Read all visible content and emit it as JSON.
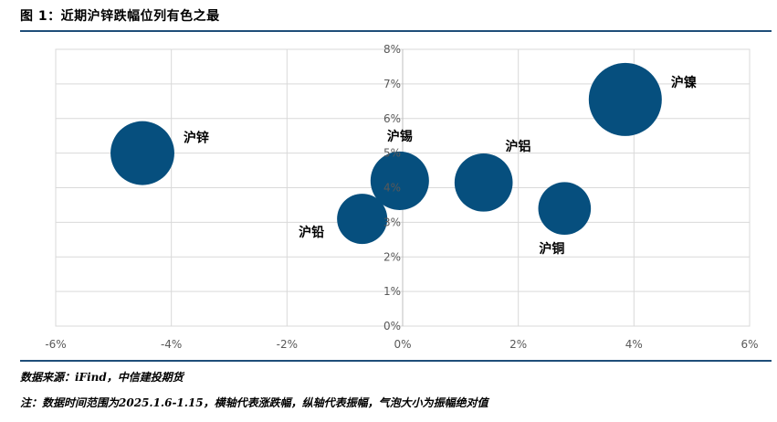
{
  "figure": {
    "title": "图 1：近期沪锌跌幅位列有色之最",
    "source": "数据来源：iFind，中信建投期货",
    "note": "注：数据时间范围为2025.1.6-1.15，横轴代表涨跌幅，纵轴代表振幅，气泡大小为振幅绝对值"
  },
  "chart_data": {
    "type": "scatter",
    "subtype": "bubble",
    "title": "",
    "xlabel": "",
    "ylabel": "",
    "xlim": [
      -6,
      6
    ],
    "ylim": [
      0,
      8
    ],
    "x_ticks": [
      "-6%",
      "-4%",
      "-2%",
      "0%",
      "2%",
      "4%",
      "6%"
    ],
    "y_ticks": [
      "0%",
      "1%",
      "2%",
      "3%",
      "4%",
      "5%",
      "6%",
      "7%",
      "8%"
    ],
    "grid": true,
    "bubble_color": "#064f7e",
    "points": [
      {
        "label": "沪锌",
        "x": -4.5,
        "y": 5.0,
        "size": 5.0,
        "label_pos": "right"
      },
      {
        "label": "沪铅",
        "x": -0.7,
        "y": 3.1,
        "size": 3.1,
        "label_pos": "left"
      },
      {
        "label": "沪锡",
        "x": -0.05,
        "y": 4.2,
        "size": 4.2,
        "label_pos": "top"
      },
      {
        "label": "沪铝",
        "x": 1.4,
        "y": 4.15,
        "size": 4.15,
        "label_pos": "top-right"
      },
      {
        "label": "沪铜",
        "x": 2.8,
        "y": 3.4,
        "size": 3.4,
        "label_pos": "bottom"
      },
      {
        "label": "沪镍",
        "x": 3.85,
        "y": 6.55,
        "size": 6.55,
        "label_pos": "right"
      }
    ]
  }
}
